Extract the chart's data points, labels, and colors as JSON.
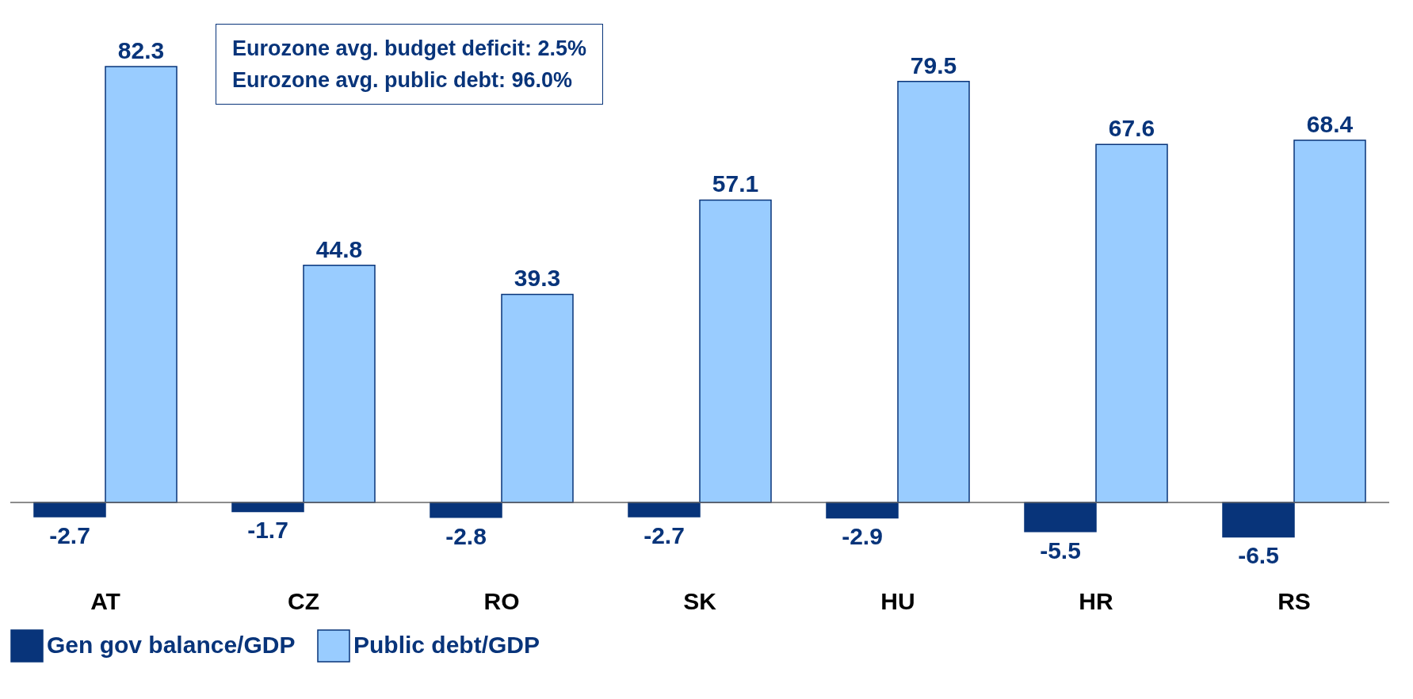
{
  "chart_data": {
    "type": "bar",
    "categories": [
      "AT",
      "CZ",
      "RO",
      "SK",
      "HU",
      "HR",
      "RS"
    ],
    "series": [
      {
        "name": "Gen gov balance/GDP",
        "color": "#08347a",
        "values": [
          -2.7,
          -1.7,
          -2.8,
          -2.7,
          -2.9,
          -5.5,
          -6.5
        ]
      },
      {
        "name": "Public debt/GDP",
        "color": "#99ccff",
        "values": [
          82.3,
          44.8,
          39.3,
          57.1,
          79.5,
          67.6,
          68.4
        ]
      }
    ],
    "data_labels": true,
    "legend": "bottom",
    "annotations": [
      "Eurozone avg. budget deficit: 2.5%",
      "Eurozone avg. public debt: 96.0%"
    ]
  }
}
